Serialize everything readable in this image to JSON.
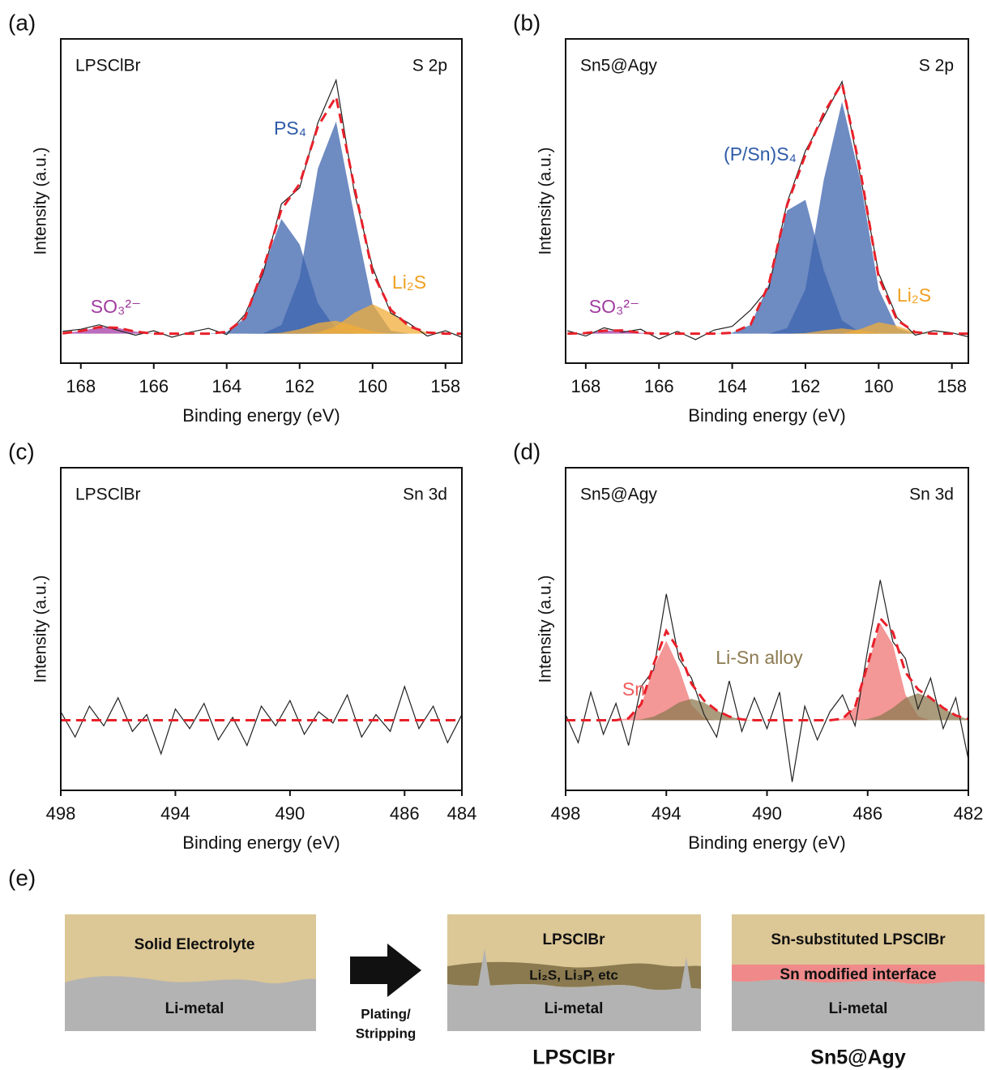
{
  "chart_data": [
    {
      "type": "line",
      "panel": "(a)",
      "sample": "LPSClBr",
      "region": "S 2p",
      "x_label": "Binding energy (eV)",
      "y_label": "Intensity (a.u.)",
      "x": [
        168.5,
        168,
        167.5,
        167,
        166.5,
        166,
        165.5,
        165,
        164.5,
        164,
        163.5,
        163,
        162.5,
        162,
        161.5,
        161,
        160.5,
        160,
        159.5,
        159,
        158.5,
        158,
        157.5
      ],
      "xlim": [
        168.55,
        157.55
      ],
      "xticks": [
        168,
        166,
        164,
        162,
        160,
        158
      ],
      "ylim": [
        -10,
        100
      ],
      "series": [
        {
          "style": "area",
          "color": "#3d64ae",
          "values": [
            0,
            0,
            0,
            0,
            0,
            0,
            0,
            0,
            0,
            0.6,
            5.3,
            21.8,
            38.9,
            30.3,
            10.3,
            1.5,
            0,
            0,
            0,
            0,
            0,
            0,
            0
          ]
        },
        {
          "style": "area",
          "color": "#3d64ae",
          "values": [
            0,
            0,
            0,
            0,
            0,
            0,
            0,
            0,
            0,
            0,
            0,
            0.1,
            2.9,
            19,
            56,
            72,
            40,
            10,
            1,
            0,
            0,
            0,
            0
          ]
        },
        {
          "style": "area",
          "color": "#f2ad3a",
          "values": [
            0,
            0,
            0,
            0,
            0,
            0,
            0,
            0,
            0,
            0,
            0,
            0,
            0.3,
            1.5,
            3.6,
            4.4,
            2.7,
            0.8,
            0,
            0,
            0,
            0,
            0
          ]
        },
        {
          "style": "area",
          "color": "#f2ad3a",
          "values": [
            0,
            0,
            0,
            0,
            0,
            0,
            0,
            0,
            0,
            0,
            0,
            0,
            0,
            0,
            0.4,
            2.5,
            7.1,
            10,
            7.1,
            2.5,
            0.4,
            0,
            0
          ]
        },
        {
          "style": "area",
          "color": "#a63ca6",
          "values": [
            0.1,
            0.9,
            2.2,
            2.0,
            0.7,
            0,
            0,
            0,
            0,
            0,
            0,
            0,
            0,
            0,
            0,
            0,
            0,
            0,
            0,
            0,
            0,
            0,
            0
          ]
        },
        {
          "style": "line",
          "color": "#222222",
          "values": [
            0.8,
            1.5,
            3.0,
            1.2,
            -0.5,
            1.0,
            -1.2,
            0.5,
            1.8,
            -0.3,
            6.5,
            20.5,
            44.0,
            49.5,
            71.5,
            86.0,
            48.0,
            22.5,
            7.0,
            3.5,
            -0.8,
            1.0,
            -1.5
          ]
        },
        {
          "style": "dashed",
          "color": "#e8202a",
          "values": [
            0.1,
            0.9,
            2.2,
            2.0,
            0.7,
            0,
            0,
            0,
            0,
            0.6,
            5.3,
            21.9,
            42.1,
            50.8,
            70.3,
            80.4,
            49.8,
            20.8,
            8.1,
            2.5,
            0.4,
            0,
            0
          ]
        }
      ],
      "annotations": [
        {
          "text": "PS₄",
          "color": "#2d5ba8"
        },
        {
          "text": "Li₂S",
          "color": "#f0a020"
        },
        {
          "text": "SO₃²⁻",
          "color": "#a03ca0"
        }
      ]
    },
    {
      "type": "line",
      "panel": "(b)",
      "sample": "Sn5@Agy",
      "region": "S 2p",
      "x_label": "Binding energy (eV)",
      "y_label": "Intensity (a.u.)",
      "x": [
        168.5,
        168,
        167.5,
        167,
        166.5,
        166,
        165.5,
        165,
        164.5,
        164,
        163.5,
        163,
        162.5,
        162,
        161.5,
        161,
        160.5,
        160,
        159.5,
        159,
        158.5,
        158,
        157.5
      ],
      "xlim": [
        168.55,
        157.55
      ],
      "xticks": [
        168,
        166,
        164,
        162,
        160,
        158
      ],
      "ylim": [
        -10,
        100
      ],
      "series": [
        {
          "style": "area",
          "color": "#3d64ae",
          "values": [
            0,
            0,
            0,
            0,
            0,
            0,
            0,
            0,
            0,
            0.3,
            3.0,
            16.8,
            41.8,
            45.4,
            21.6,
            4.5,
            0.4,
            0,
            0,
            0,
            0,
            0,
            0
          ]
        },
        {
          "style": "area",
          "color": "#3d64ae",
          "values": [
            0,
            0,
            0,
            0,
            0,
            0,
            0,
            0,
            0,
            0,
            0,
            0,
            1.9,
            15.1,
            52.1,
            78.7,
            52.1,
            15.1,
            1.9,
            0,
            0,
            0,
            0
          ]
        },
        {
          "style": "area",
          "color": "#f2ad3a",
          "values": [
            0,
            0,
            0,
            0,
            0,
            0,
            0,
            0,
            0,
            0,
            0,
            0,
            0,
            0.2,
            1.1,
            1.8,
            1.1,
            0.2,
            0,
            0,
            0,
            0,
            0
          ]
        },
        {
          "style": "area",
          "color": "#f2ad3a",
          "values": [
            0,
            0,
            0,
            0,
            0,
            0,
            0,
            0,
            0,
            0,
            0,
            0,
            0,
            0,
            0,
            0,
            1.6,
            3.9,
            2.7,
            0.5,
            0,
            0,
            0
          ]
        },
        {
          "style": "area",
          "color": "#a63ca6",
          "values": [
            0,
            0.2,
            1.0,
            1.1,
            0.3,
            0,
            0,
            0,
            0,
            0,
            0,
            0,
            0,
            0,
            0,
            0,
            0,
            0,
            0,
            0,
            0,
            0,
            0
          ]
        },
        {
          "style": "line",
          "color": "#222222",
          "values": [
            1.0,
            -0.8,
            2.0,
            0.5,
            1.5,
            -1.8,
            0.8,
            -2.0,
            1.2,
            2.5,
            8.0,
            15.5,
            44.5,
            62.0,
            73.5,
            85.5,
            53.5,
            20.5,
            5.5,
            -0.5,
            1.0,
            0.3,
            -1.2
          ]
        },
        {
          "style": "dashed",
          "color": "#e8202a",
          "values": [
            0,
            0.2,
            1.0,
            1.1,
            0.3,
            0,
            0,
            0,
            0,
            0.3,
            3.0,
            16.8,
            43.7,
            60.7,
            74.8,
            85.0,
            55.2,
            19.2,
            4.6,
            0.5,
            0,
            0,
            0
          ]
        }
      ],
      "annotations": [
        {
          "text": "(P/Sn)S₄",
          "color": "#2d5ba8"
        },
        {
          "text": "Li₂S",
          "color": "#f0a020"
        },
        {
          "text": "SO₃²⁻",
          "color": "#a03ca0"
        }
      ]
    },
    {
      "type": "line",
      "panel": "(c)",
      "sample": "LPSClBr",
      "region": "Sn 3d",
      "x_label": "Binding energy (eV)",
      "y_label": "Intensity (a.u.)",
      "x": [
        498,
        497.5,
        497,
        496.5,
        496,
        495.5,
        495,
        494.5,
        494,
        493.5,
        493,
        492.5,
        492,
        491.5,
        491,
        490.5,
        490,
        489.5,
        489,
        488.5,
        488,
        487.5,
        487,
        486.5,
        486,
        485.5,
        485,
        484.5,
        484
      ],
      "xlim": [
        498,
        484
      ],
      "xticks": [
        498,
        494,
        490,
        486,
        484
      ],
      "ylim": [
        -25,
        90
      ],
      "series": [
        {
          "style": "line",
          "color": "#222222",
          "values": [
            3,
            -6,
            5,
            -2,
            8,
            -4,
            2,
            -12,
            4,
            -3,
            6,
            -7,
            1,
            -9,
            5,
            -2,
            7,
            -5,
            3,
            -1,
            9,
            -6,
            2,
            -4,
            12,
            -3,
            5,
            -8,
            2
          ]
        },
        {
          "style": "dashed",
          "color": "#e8202a",
          "values": [
            0,
            0,
            0,
            0,
            0,
            0,
            0,
            0,
            0,
            0,
            0,
            0,
            0,
            0,
            0,
            0,
            0,
            0,
            0,
            0,
            0,
            0,
            0,
            0,
            0,
            0,
            0,
            0,
            0
          ]
        }
      ],
      "annotations": []
    },
    {
      "type": "line",
      "panel": "(d)",
      "sample": "Sn5@Agy",
      "region": "Sn 3d",
      "x_label": "Binding energy (eV)",
      "y_label": "Intensity (a.u.)",
      "x": [
        498,
        497.5,
        497,
        496.5,
        496,
        495.5,
        495,
        494.5,
        494,
        493.5,
        493,
        492.5,
        492,
        491.5,
        491,
        490.5,
        490,
        489.5,
        489,
        488.5,
        488,
        487.5,
        487,
        486.5,
        486,
        485.5,
        485,
        484.5,
        484,
        483.5,
        483,
        482.5,
        482
      ],
      "xlim": [
        498,
        482
      ],
      "xticks": [
        498,
        494,
        490,
        486,
        482
      ],
      "ylim": [
        -25,
        90
      ],
      "series": [
        {
          "style": "area",
          "color": "#f07474",
          "values": [
            0,
            0,
            0,
            0,
            0,
            0.7,
            5.4,
            18.7,
            28.3,
            18.7,
            5.4,
            0.7,
            0,
            0,
            0,
            0,
            0,
            0,
            0,
            0,
            0,
            0,
            0.5,
            4.8,
            19.4,
            34.6,
            27.0,
            9.2,
            1.4,
            0,
            0,
            0,
            0
          ]
        },
        {
          "style": "area",
          "color": "#8c7a50",
          "values": [
            0,
            0,
            0,
            0,
            0,
            0,
            0.3,
            1.3,
            3.5,
            6.3,
            7.6,
            6.3,
            3.5,
            1.3,
            0.3,
            0,
            0,
            0,
            0,
            0,
            0,
            0,
            0,
            0,
            0.4,
            1.7,
            4.4,
            7.9,
            9.6,
            7.9,
            4.4,
            1.7,
            0.4
          ]
        },
        {
          "style": "line",
          "color": "#222222",
          "values": [
            2,
            -8,
            10,
            -5,
            6,
            -9,
            12,
            18,
            45,
            22,
            15,
            2,
            -6,
            14,
            -4,
            8,
            -3,
            10,
            -22,
            5,
            -7,
            3,
            9,
            -2,
            25,
            50,
            28,
            22,
            4,
            15,
            -3,
            8,
            -14
          ]
        },
        {
          "style": "dashed",
          "color": "#e8202a",
          "values": [
            0,
            0,
            0,
            0,
            0,
            0.7,
            5.7,
            20.0,
            31.8,
            25.0,
            13.0,
            7.0,
            3.5,
            1.3,
            0.3,
            0,
            0,
            0,
            0,
            0,
            0,
            0,
            0.5,
            4.8,
            19.8,
            36.3,
            31.4,
            17.1,
            11.0,
            7.9,
            4.4,
            1.7,
            0.4
          ]
        }
      ],
      "annotations": [
        {
          "text": "Sn",
          "color": "#f05a5a"
        },
        {
          "text": "Li-Sn alloy",
          "color": "#8c7a50"
        }
      ]
    }
  ],
  "diagram": {
    "panel": "(e)",
    "before": {
      "top": "Solid Electrolyte",
      "bottom": "Li-metal"
    },
    "arrow": [
      "Plating/",
      "Stripping"
    ],
    "lpsclbr": {
      "top": "LPSClBr",
      "middle": "Li₂S, Li₃P, etc",
      "bottom": "Li-metal",
      "caption": "LPSClBr"
    },
    "sn": {
      "top": "Sn-substituted LPSClBr",
      "middle": "Sn modified interface",
      "bottom": "Li-metal",
      "caption": "Sn5@Agy"
    }
  }
}
